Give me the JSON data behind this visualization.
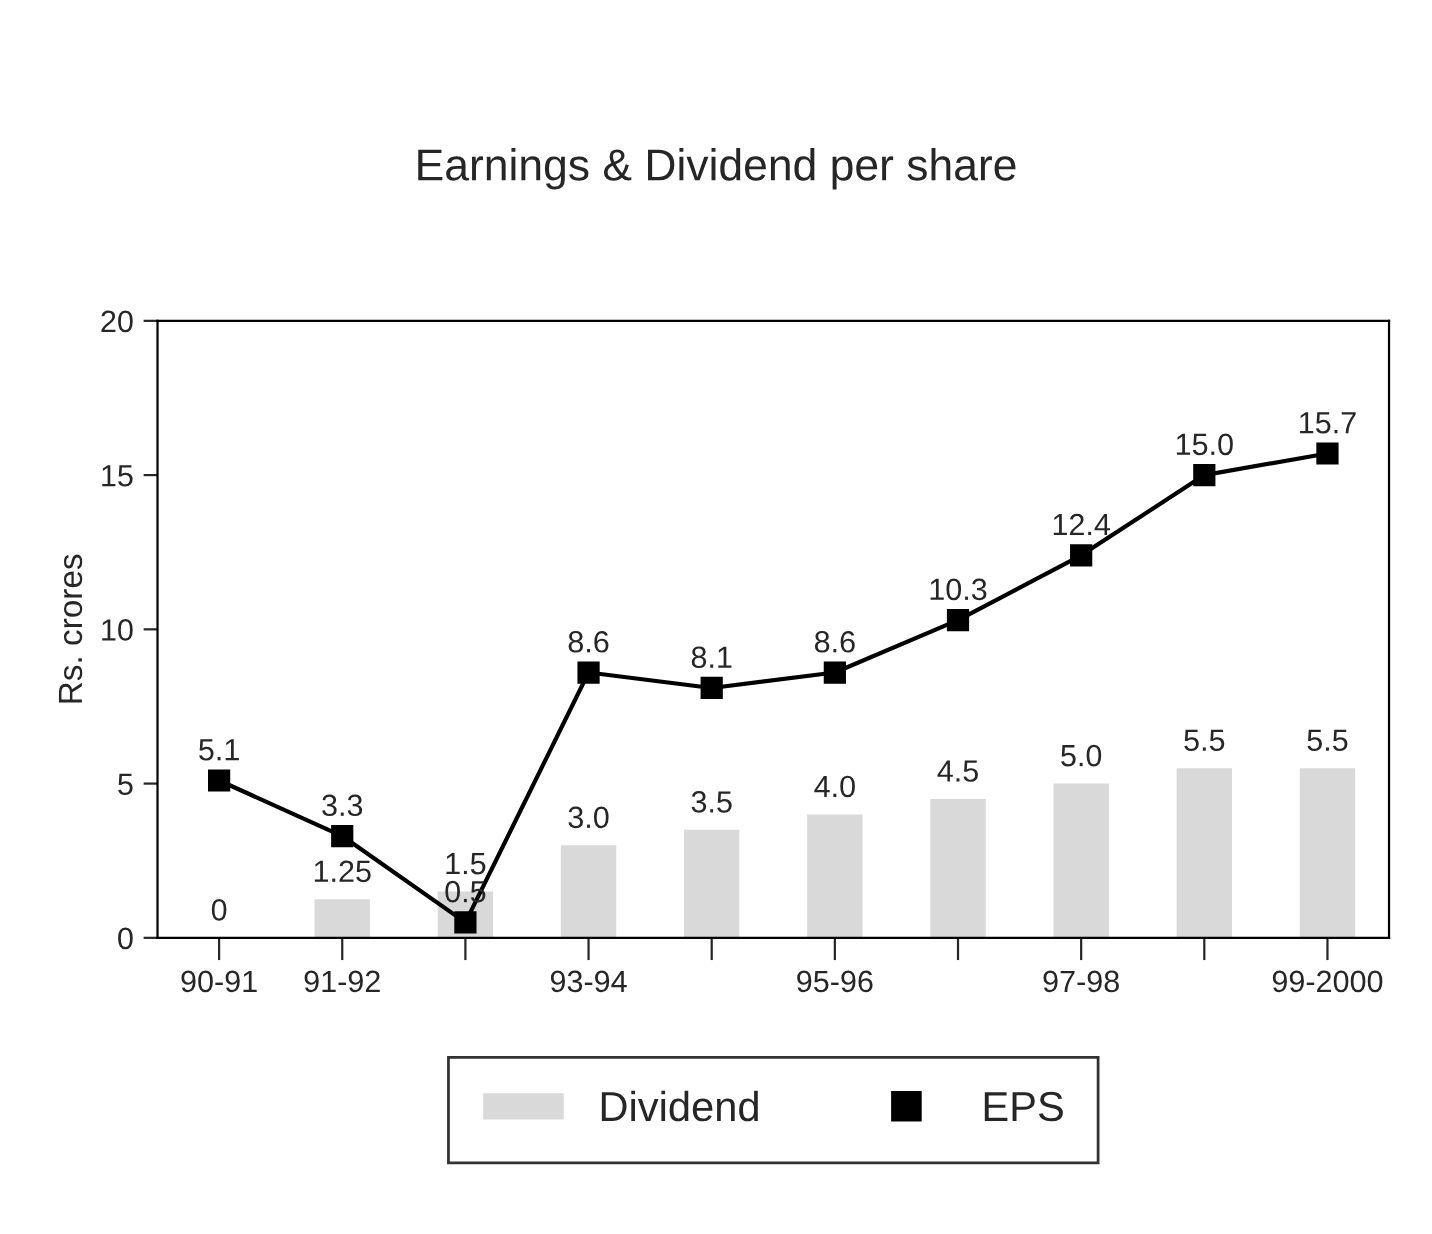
{
  "chart_data": {
    "type": "bar",
    "title": "Earnings & Dividend per share",
    "ylabel": "Rs. crores",
    "categories": [
      "90-91",
      "91-92",
      null,
      "93-94",
      null,
      "95-96",
      null,
      "97-98",
      null,
      "99-2000"
    ],
    "series": [
      {
        "name": "Dividend",
        "color": "#d9d9d9",
        "values": [
          0,
          1.25,
          1.5,
          3.0,
          3.5,
          4.0,
          4.5,
          5.0,
          5.5,
          5.5
        ],
        "value_labels": [
          "0",
          "1.25",
          "1.5",
          "3.0",
          "3.5",
          "4.0",
          "4.5",
          "5.0",
          "5.5",
          "5.5"
        ]
      },
      {
        "name": "EPS",
        "type": "line",
        "color": "#000000",
        "marker": "square",
        "values": [
          5.1,
          3.3,
          0.5,
          8.6,
          8.1,
          8.6,
          10.3,
          12.4,
          15.0,
          15.7
        ],
        "value_labels": [
          "5.1",
          "3.3",
          "0.5",
          "8.6",
          "8.1",
          "8.6",
          "10.3",
          "12.4",
          "15.0",
          "15.7"
        ]
      }
    ],
    "ylim": [
      0,
      20
    ],
    "yticks": [
      0,
      5,
      10,
      15,
      20
    ],
    "grid": false,
    "legend": "bottom"
  }
}
